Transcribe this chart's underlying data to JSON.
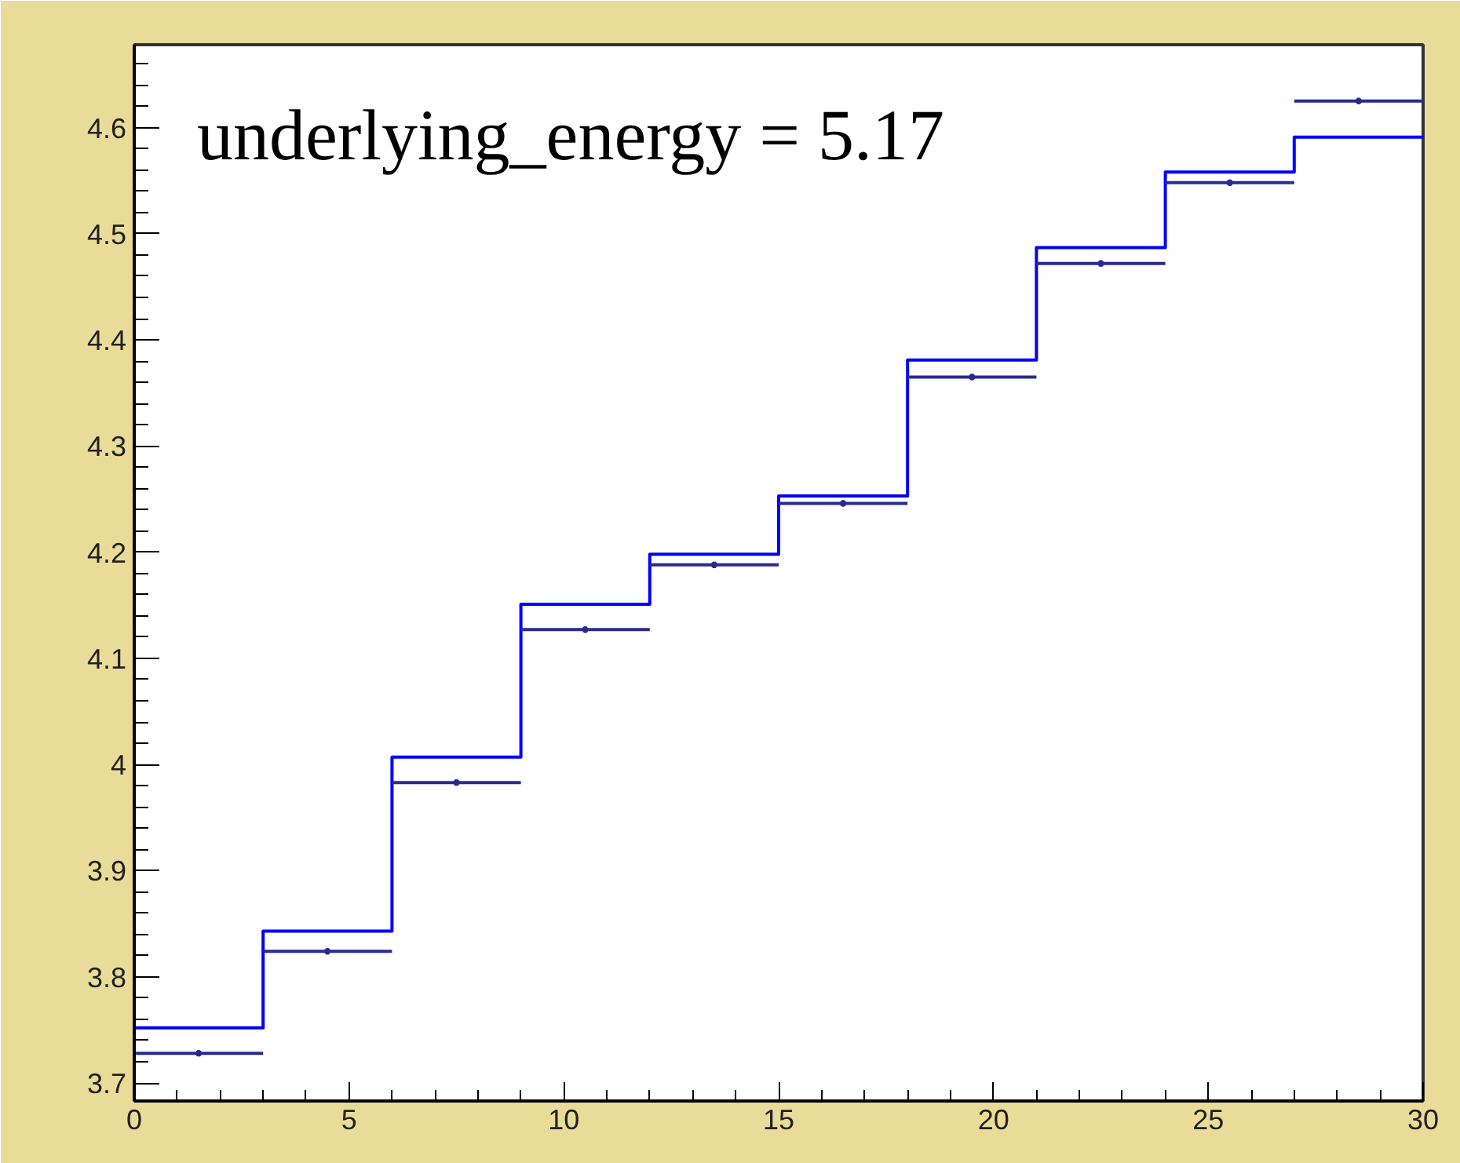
{
  "chart_data": {
    "type": "histogram",
    "bins": [
      0,
      3,
      6,
      9,
      12,
      15,
      18,
      21,
      24,
      27,
      30
    ],
    "series": [
      {
        "color": "#0000ff",
        "values": [
          3.752,
          3.843,
          4.007,
          4.151,
          4.198,
          4.253,
          4.381,
          4.487,
          4.558,
          4.591
        ]
      },
      {
        "type": "scatter",
        "color": "#2a2a90",
        "x": [
          1.5,
          4.5,
          7.5,
          10.5,
          13.5,
          16.5,
          19.5,
          22.5,
          25.5,
          28.5
        ],
        "values": [
          3.728,
          3.824,
          3.983,
          4.127,
          4.188,
          4.246,
          4.365,
          4.472,
          4.548,
          4.625
        ],
        "xerrors": [
          1.5,
          1.5,
          1.5,
          1.5,
          1.5,
          1.5,
          1.5,
          1.5,
          1.5,
          1.5
        ],
        "errors": [
          0.003,
          0.003,
          0.003,
          0.003,
          0.003,
          0.003,
          0.003,
          0.003,
          0.003,
          0.003
        ],
        "marker": "circle"
      }
    ],
    "xlim": [
      0,
      30
    ],
    "xticks": [
      0,
      5,
      10,
      15,
      20,
      25,
      30
    ],
    "ylim": [
      3.683,
      4.678
    ],
    "yticks": [
      3.7,
      3.8,
      3.9,
      4,
      4.1,
      4.2,
      4.3,
      4.4,
      4.5,
      4.6
    ],
    "grid": false,
    "annotations": [
      "underlying_energy = 5.17"
    ]
  }
}
